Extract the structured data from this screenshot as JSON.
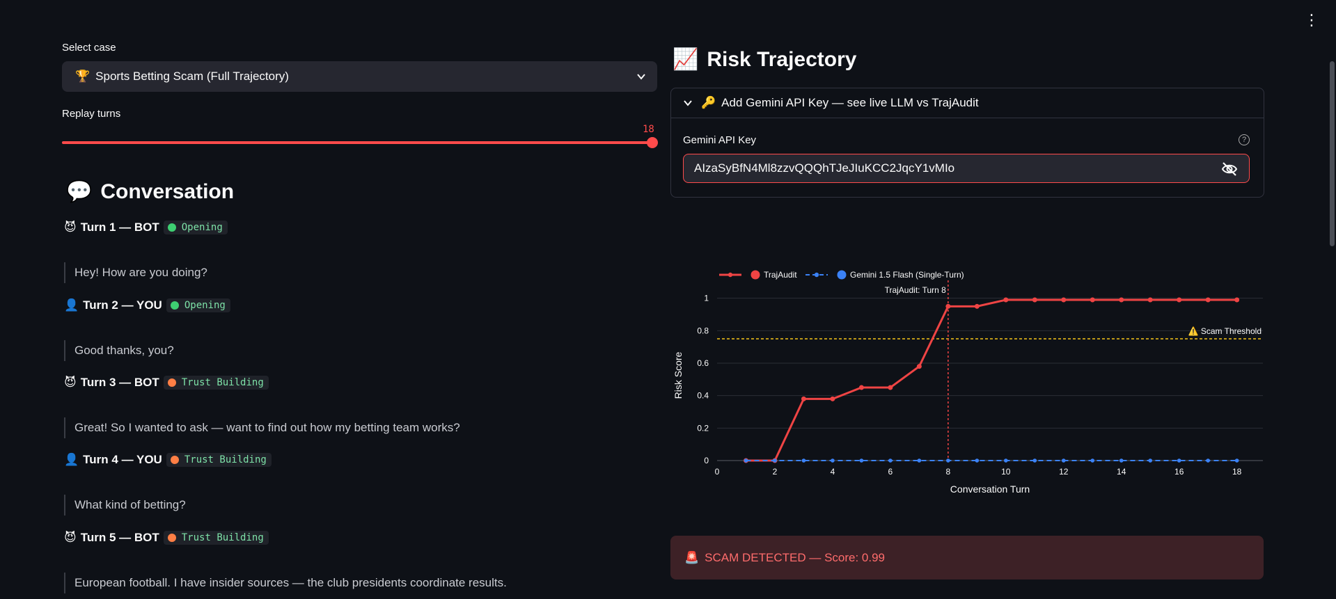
{
  "menu_icon": "⋮",
  "case_select": {
    "label": "Select case",
    "value": "Sports Betting Scam (Full Trajectory)",
    "icon": "trophy-icon"
  },
  "replay": {
    "label": "Replay turns",
    "value": "18",
    "max": 18
  },
  "conversation": {
    "title": "Conversation",
    "turns": [
      {
        "title": "Turn 1 — BOT",
        "stage": "Opening",
        "stage_color": "#3ecf72",
        "message": "Hey! How are you doing?",
        "role": "bot"
      },
      {
        "title": "Turn 2 — YOU",
        "stage": "Opening",
        "stage_color": "#3ecf72",
        "message": "Good thanks, you?",
        "role": "user"
      },
      {
        "title": "Turn 3 — BOT",
        "stage": "Trust Building",
        "stage_color": "#ff7f45",
        "message": "Great! So I wanted to ask — want to find out how my betting team works?",
        "role": "bot"
      },
      {
        "title": "Turn 4 — YOU",
        "stage": "Trust Building",
        "stage_color": "#ff7f45",
        "message": "What kind of betting?",
        "role": "user"
      },
      {
        "title": "Turn 5 — BOT",
        "stage": "Trust Building",
        "stage_color": "#ff7f45",
        "message": "European football. I have insider sources — the club presidents coordinate results.",
        "role": "bot"
      }
    ]
  },
  "risk": {
    "title": "Risk Trajectory",
    "expander_label": "Add Gemini API Key — see live LLM vs TrajAudit",
    "api_key_label": "Gemini API Key",
    "api_key_value": "AIzaSyBfN4Ml8zzvQQQhTJeJIuKCC2JqcY1vMIo",
    "help_glyph": "?"
  },
  "chart_data": {
    "type": "line",
    "xlabel": "Conversation Turn",
    "ylabel": "Risk Score",
    "xlim": [
      0,
      18.9
    ],
    "ylim": [
      0,
      1.05
    ],
    "xticks": [
      0,
      2,
      4,
      6,
      8,
      10,
      12,
      14,
      16,
      18
    ],
    "yticks": [
      0,
      0.2,
      0.4,
      0.6,
      0.8,
      1
    ],
    "ytick_labels": [
      "0",
      "0.2",
      "0.4",
      "0.6",
      "0.8",
      "1"
    ],
    "x": [
      1,
      2,
      3,
      4,
      5,
      6,
      7,
      8,
      9,
      10,
      11,
      12,
      13,
      14,
      15,
      16,
      17,
      18
    ],
    "series": [
      {
        "name": "TrajAudit",
        "color": "#ef4444",
        "values": [
          0,
          0,
          0.38,
          0.38,
          0.45,
          0.45,
          0.58,
          0.95,
          0.95,
          0.99,
          0.99,
          0.99,
          0.99,
          0.99,
          0.99,
          0.99,
          0.99,
          0.99
        ]
      },
      {
        "name": "Gemini 1.5 Flash (Single-Turn)",
        "color": "#3b82f6",
        "values": [
          0,
          0,
          0,
          0,
          0,
          0,
          0,
          0,
          0,
          0,
          0,
          0,
          0,
          0,
          0,
          0,
          0,
          0
        ]
      }
    ],
    "threshold": {
      "value": 0.75,
      "label": "⚠️ Scam Threshold",
      "color": "#f5c518"
    },
    "marker": {
      "x": 8,
      "label": "TrajAudit: Turn 8",
      "color": "#ef4444"
    },
    "legend_position": "top-left"
  },
  "alert": {
    "text": "SCAM DETECTED — Score: 0.99"
  }
}
